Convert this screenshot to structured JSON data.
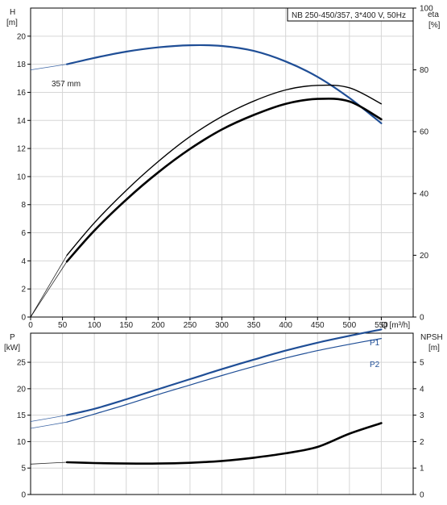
{
  "chart_data": [
    {
      "type": "line",
      "panel": "head-efficiency",
      "title": "NB 250-450/357, 3*400 V, 50Hz",
      "y_left": {
        "label_top": "H",
        "label_unit": "[m]",
        "ticks": [
          0,
          2,
          4,
          6,
          8,
          10,
          12,
          14,
          16,
          18,
          20
        ],
        "range": [
          0,
          22
        ]
      },
      "y_right": {
        "label_top": "eta",
        "label_unit": "[%]",
        "ticks": [
          0,
          20,
          40,
          60,
          80,
          100
        ],
        "range": [
          0,
          100
        ]
      },
      "x": {
        "label": "Q [m³/h]",
        "ticks": [
          0,
          50,
          100,
          150,
          200,
          250,
          300,
          350,
          400,
          450,
          500,
          550
        ],
        "range": [
          0,
          600
        ]
      },
      "annotation": "357 mm",
      "grid": true,
      "series": [
        {
          "key": "head",
          "axis": "left",
          "color": "#1f4e96",
          "width": 2.2,
          "points": [
            [
              57,
              18.0
            ],
            [
              100,
              18.45
            ],
            [
              150,
              18.9
            ],
            [
              200,
              19.2
            ],
            [
              250,
              19.35
            ],
            [
              300,
              19.3
            ],
            [
              350,
              18.95
            ],
            [
              400,
              18.2
            ],
            [
              450,
              17.1
            ],
            [
              500,
              15.6
            ],
            [
              550,
              13.8
            ]
          ],
          "ext": [
            [
              0,
              17.6
            ],
            [
              57,
              18.0
            ]
          ]
        },
        {
          "key": "eta-upper",
          "axis": "right",
          "color": "#000000",
          "width": 1.4,
          "points": [
            [
              57,
              20
            ],
            [
              100,
              30.5
            ],
            [
              150,
              41
            ],
            [
              200,
              50.3
            ],
            [
              250,
              58.4
            ],
            [
              300,
              64.9
            ],
            [
              350,
              69.9
            ],
            [
              400,
              73.5
            ],
            [
              450,
              75
            ],
            [
              500,
              74.2
            ],
            [
              550,
              69
            ]
          ],
          "ext": [
            [
              0,
              0
            ],
            [
              57,
              20
            ]
          ]
        },
        {
          "key": "eta-lower",
          "axis": "right",
          "color": "#000000",
          "width": 2.6,
          "points": [
            [
              57,
              18
            ],
            [
              100,
              28
            ],
            [
              150,
              38
            ],
            [
              200,
              46.8
            ],
            [
              250,
              54.4
            ],
            [
              300,
              60.7
            ],
            [
              350,
              65.4
            ],
            [
              400,
              69
            ],
            [
              450,
              70.6
            ],
            [
              500,
              69.8
            ],
            [
              550,
              64
            ]
          ],
          "ext": [
            [
              0,
              0
            ],
            [
              57,
              18
            ]
          ]
        }
      ]
    },
    {
      "type": "line",
      "panel": "power-npsh",
      "y_left": {
        "label_top": "P",
        "label_unit": "[kW]",
        "ticks": [
          0,
          5,
          10,
          15,
          20,
          25
        ],
        "range": [
          0,
          30.5
        ]
      },
      "y_right": {
        "label_top": "NPSH",
        "label_unit": "[m]",
        "ticks": [
          0,
          1,
          2,
          3,
          4,
          5
        ],
        "range": [
          0,
          6.1
        ]
      },
      "x": {
        "range": [
          0,
          600
        ],
        "ticks": [
          0,
          50,
          100,
          150,
          200,
          250,
          300,
          350,
          400,
          450,
          500,
          550
        ]
      },
      "grid": true,
      "series": [
        {
          "name": "P1",
          "key": "P1",
          "axis": "left",
          "color": "#1f4e96",
          "width": 2.2,
          "points": [
            [
              57,
              15.0
            ],
            [
              100,
              16.2
            ],
            [
              150,
              18.0
            ],
            [
              200,
              19.9
            ],
            [
              250,
              21.8
            ],
            [
              300,
              23.7
            ],
            [
              350,
              25.5
            ],
            [
              400,
              27.2
            ],
            [
              450,
              28.7
            ],
            [
              500,
              30.0
            ],
            [
              550,
              31.2
            ]
          ],
          "ext": [
            [
              0,
              13.8
            ],
            [
              57,
              15.0
            ]
          ]
        },
        {
          "name": "P2",
          "key": "P2",
          "axis": "left",
          "color": "#1f4e96",
          "width": 1.2,
          "points": [
            [
              57,
              13.7
            ],
            [
              100,
              15.2
            ],
            [
              150,
              17.0
            ],
            [
              200,
              18.9
            ],
            [
              250,
              20.7
            ],
            [
              300,
              22.5
            ],
            [
              350,
              24.2
            ],
            [
              400,
              25.8
            ],
            [
              450,
              27.2
            ],
            [
              500,
              28.4
            ],
            [
              550,
              29.5
            ]
          ],
          "ext": [
            [
              0,
              12.5
            ],
            [
              57,
              13.7
            ]
          ]
        },
        {
          "key": "NPSH",
          "axis": "right",
          "color": "#000000",
          "width": 2.6,
          "points": [
            [
              57,
              1.22
            ],
            [
              100,
              1.19
            ],
            [
              150,
              1.17
            ],
            [
              200,
              1.17
            ],
            [
              250,
              1.2
            ],
            [
              300,
              1.27
            ],
            [
              350,
              1.39
            ],
            [
              400,
              1.56
            ],
            [
              450,
              1.8
            ],
            [
              500,
              2.3
            ],
            [
              550,
              2.7
            ]
          ],
          "ext": [
            [
              0,
              1.15
            ],
            [
              57,
              1.22
            ]
          ]
        }
      ]
    }
  ]
}
